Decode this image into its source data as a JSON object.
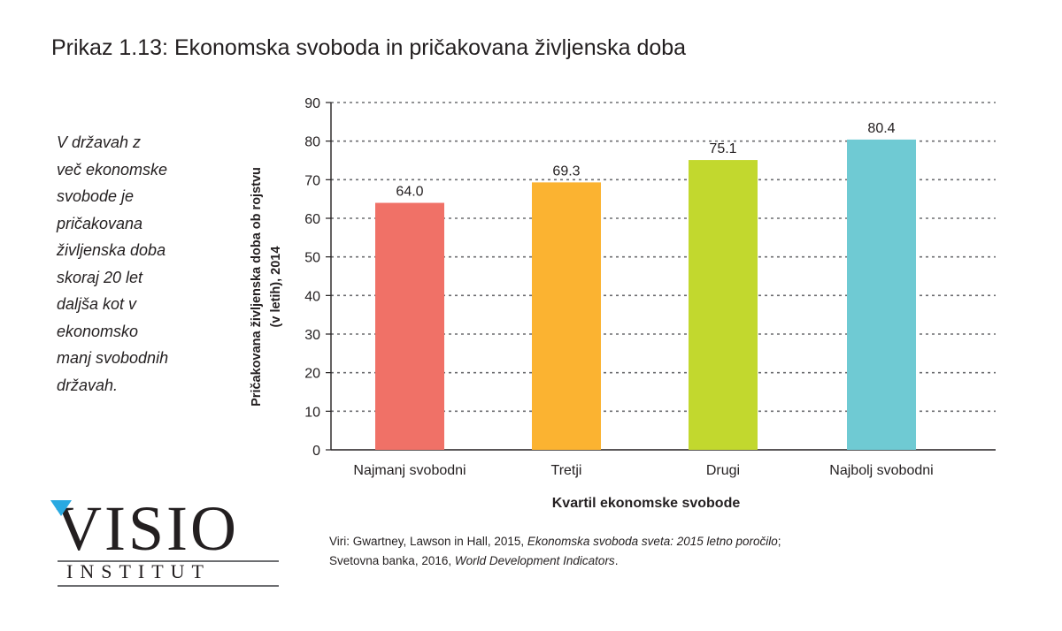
{
  "header": {
    "title": "Prikaz 1.13: Ekonomska svoboda in pričakovana življenska doba"
  },
  "side_note": "V državah z\nveč ekonomske\nsvobode je\npričakovana\nživljenska doba\nskoraj 20 let\ndaljša kot v\nekonomsko\nmanj svobodnih\ndržavah.",
  "logo": {
    "word": "VISIO",
    "sub": "INSTITUT"
  },
  "source": {
    "p1": "Viri: Gwartney, Lawson in Hall, 2015, ",
    "t1": "Ekonomska svoboda sveta: 2015 letno poročilo",
    "p2": ";",
    "p3": "Svetovna banka, 2016, ",
    "t2": "World Development Indicators",
    "p4": "."
  },
  "chart_data": {
    "type": "bar",
    "categories": [
      "Najmanj svobodni",
      "Tretji",
      "Drugi",
      "Najbolj svobodni"
    ],
    "values": [
      64.0,
      69.3,
      75.1,
      80.4
    ],
    "value_labels": [
      "64.0",
      "69.3",
      "75.1",
      "80.4"
    ],
    "colors": [
      "#f07167",
      "#fbb331",
      "#c2d82e",
      "#6fcad3"
    ],
    "title": "Prikaz 1.13: Ekonomska svoboda in pričakovana življenska doba",
    "xlabel": "Kvartil ekonomske svobode",
    "ylabel_lines": [
      "Pričakovana življenska doba ob rojstvu",
      "(v letih), 2014"
    ],
    "ylim": [
      0,
      90
    ],
    "yticks": [
      0,
      10,
      20,
      30,
      40,
      50,
      60,
      70,
      80,
      90
    ],
    "grid": true,
    "grid_style": "dotted",
    "legend": "none"
  }
}
